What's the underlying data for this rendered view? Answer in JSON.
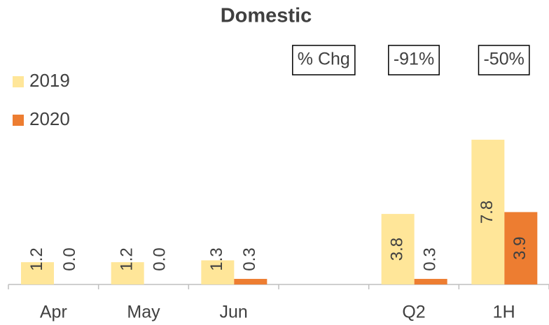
{
  "chart_data": {
    "type": "bar",
    "title": "Domestic",
    "categories": [
      "Apr",
      "May",
      "Jun",
      null,
      "Q2",
      "1H"
    ],
    "series": [
      {
        "name": "2019",
        "color": "#ffe699",
        "values": [
          1.2,
          1.2,
          1.3,
          null,
          3.8,
          7.8
        ],
        "value_labels": [
          "1.2",
          "1.2",
          "1.3",
          null,
          "3.8",
          "7.8"
        ]
      },
      {
        "name": "2020",
        "color": "#ed7d31",
        "values": [
          0,
          0,
          0.3,
          null,
          0.3,
          3.9
        ],
        "value_labels": [
          "0.0",
          "0.0",
          "0.3",
          null,
          "0.3",
          "3.9"
        ]
      }
    ],
    "ylim": [
      0,
      9
    ],
    "annotations": [
      "% Chg",
      "-91%",
      "-50%"
    ],
    "legend": "left"
  }
}
